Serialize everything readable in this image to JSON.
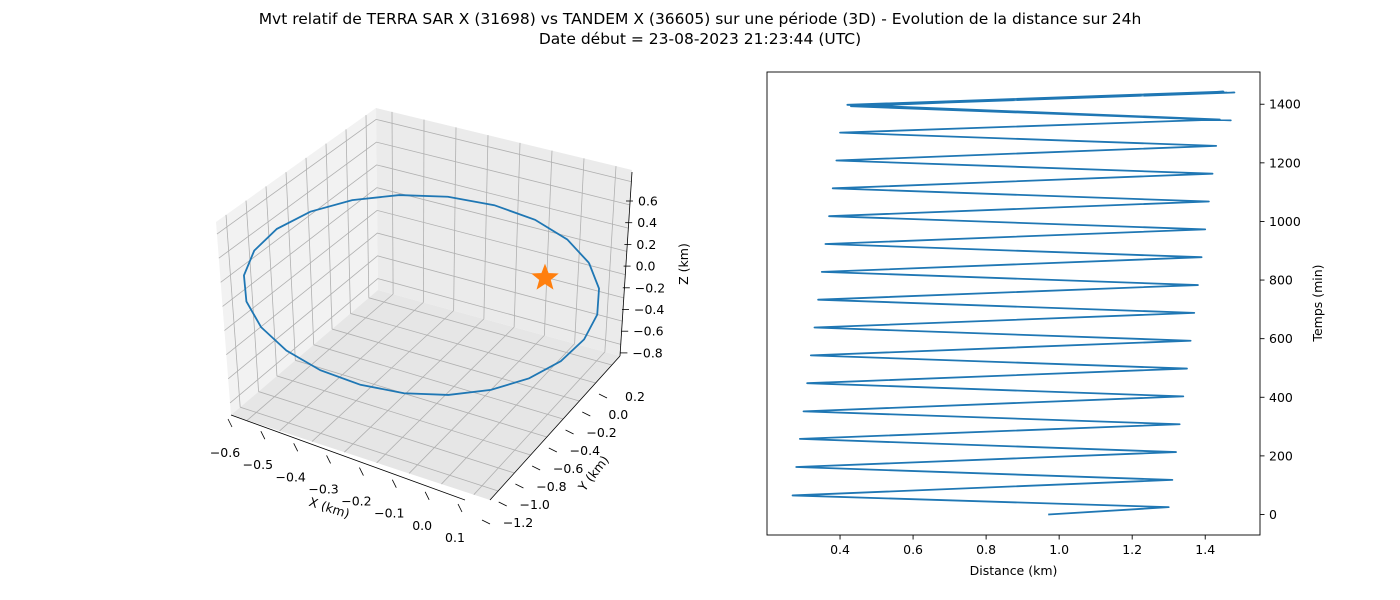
{
  "figure": {
    "title_line1": "Mvt relatif de TERRA SAR X (31698) vs TANDEM X (36605) sur une période (3D) - Evolution de la distance sur 24h",
    "title_line2": "Date début = 23-08-2023 21:23:44 (UTC)"
  },
  "colors": {
    "series": "#1f77b4",
    "marker": "#ff7f0e",
    "grid": "#b0b0b0",
    "pane_light": "#f2f2f2",
    "pane_mid": "#ebebeb",
    "pane_dark": "#e6e6e6"
  },
  "chart_data": [
    {
      "type": "line3d",
      "xlabel": "X (km)",
      "ylabel": "Y (km)",
      "zlabel": "Z (km)",
      "x_ticks": [
        "−0.6",
        "−0.5",
        "−0.4",
        "−0.3",
        "−0.2",
        "−0.1",
        "0.0",
        "0.1"
      ],
      "y_ticks": [
        "0.2",
        "0.0",
        "−0.2",
        "−0.4",
        "−0.6",
        "−0.8",
        "−1.0",
        "−1.2"
      ],
      "z_ticks": [
        "0.6",
        "0.4",
        "0.2",
        "0.0",
        "−0.2",
        "−0.4",
        "−0.6",
        "−0.8"
      ],
      "grid": true,
      "series": [
        {
          "marker": "line",
          "color": "#1f77b4"
        },
        {
          "marker": "star",
          "color": "#ff7f0e"
        }
      ]
    },
    {
      "type": "line",
      "xlabel": "Distance (km)",
      "ylabel": "Temps (min)",
      "xlim": [
        0.2,
        1.55
      ],
      "ylim": [
        -70,
        1510
      ],
      "x_ticks": [
        0.4,
        0.6,
        0.8,
        1.0,
        1.2,
        1.4
      ],
      "x_tick_labels": [
        "0.4",
        "0.6",
        "0.8",
        "1.0",
        "1.2",
        "1.4"
      ],
      "y_ticks": [
        0,
        200,
        400,
        600,
        800,
        1000,
        1200,
        1400
      ],
      "y_tick_labels": [
        "0",
        "200",
        "400",
        "600",
        "800",
        "1000",
        "1200",
        "1400"
      ],
      "y_axis_side": "right",
      "grid": false,
      "series": [
        {
          "color": "#1f77b4",
          "x": [
            0.97,
            1.3,
            0.27,
            1.31,
            0.28,
            1.32,
            0.29,
            1.33,
            0.3,
            1.34,
            0.31,
            1.35,
            0.32,
            1.36,
            0.33,
            1.37,
            0.34,
            1.38,
            0.35,
            1.39,
            0.36,
            1.4,
            0.37,
            1.41,
            0.38,
            1.42,
            0.39,
            1.43,
            0.4,
            1.44,
            0.42,
            1.45,
            0.43,
            1.47,
            0.44,
            1.48,
            0.46,
            1.46
          ],
          "y": [
            0,
            25,
            65,
            118,
            162,
            213,
            258,
            308,
            352,
            403,
            448,
            498,
            543,
            593,
            638,
            688,
            733,
            783,
            828,
            878,
            923,
            973,
            1018,
            1068,
            1113,
            1163,
            1208,
            1258,
            1303,
            1348,
            1398,
            1443,
            1393,
            1345,
            1395,
            1440,
            1400,
            1440
          ]
        }
      ]
    }
  ]
}
